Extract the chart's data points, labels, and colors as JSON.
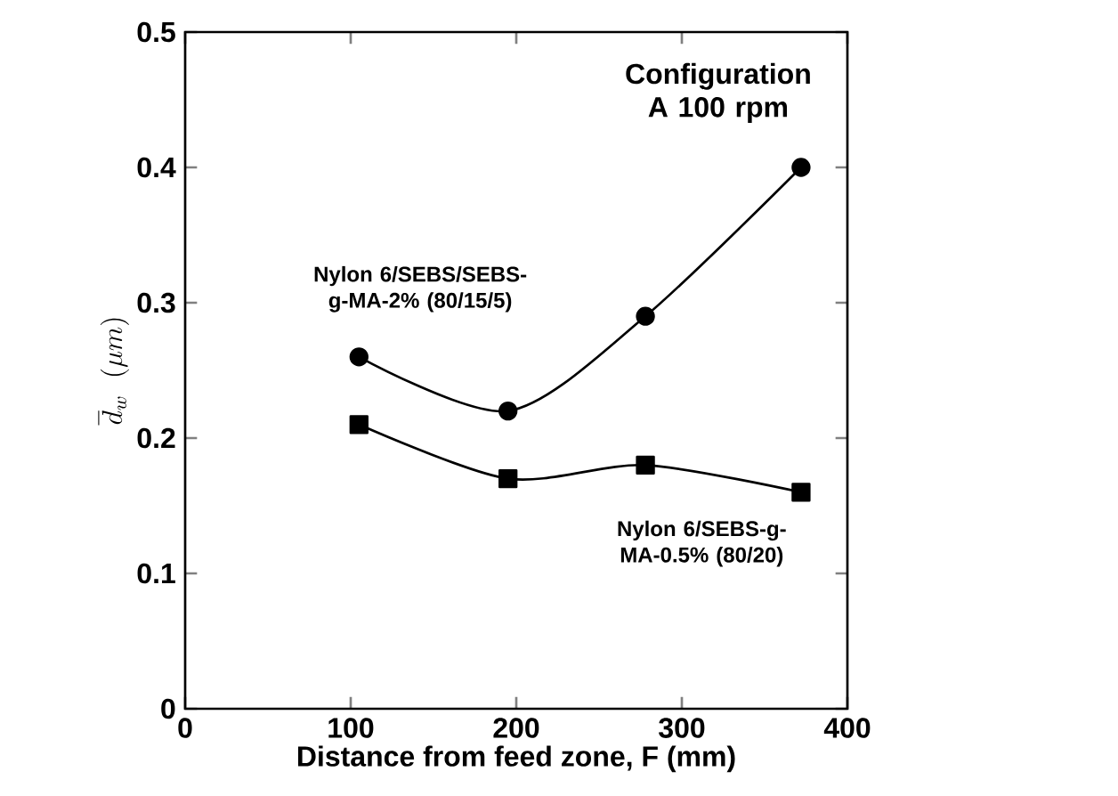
{
  "chart_data": {
    "type": "line",
    "xlabel": "Distance from feed zone, F (mm)",
    "ylabel": "\\overline{d}_{w}\\ \\ (\\mu m)",
    "xlim": [
      0,
      400
    ],
    "xticks": [
      0,
      100,
      200,
      300,
      400
    ],
    "ylim": [
      0,
      0.5
    ],
    "yticks": [
      0,
      0.1,
      0.2,
      0.3,
      0.4,
      0.5
    ],
    "series": [
      {
        "name": "Nylon 6/SEBS/SEBS-g-MA-2% (80/15/5)",
        "color": "#000000",
        "marker": "circle",
        "x": [
          105,
          195,
          278,
          372
        ],
        "values": [
          0.26,
          0.22,
          0.29,
          0.4
        ]
      },
      {
        "name": "Nylon 6/SEBS-g-MA-0.5% (80/20)",
        "color": "#000000",
        "marker": "square",
        "x": [
          105,
          195,
          278,
          372
        ],
        "values": [
          0.21,
          0.17,
          0.18,
          0.16
        ]
      }
    ],
    "annotations": [
      "Configuration A 100 rpm"
    ],
    "grid": false,
    "line_style": "solid"
  }
}
